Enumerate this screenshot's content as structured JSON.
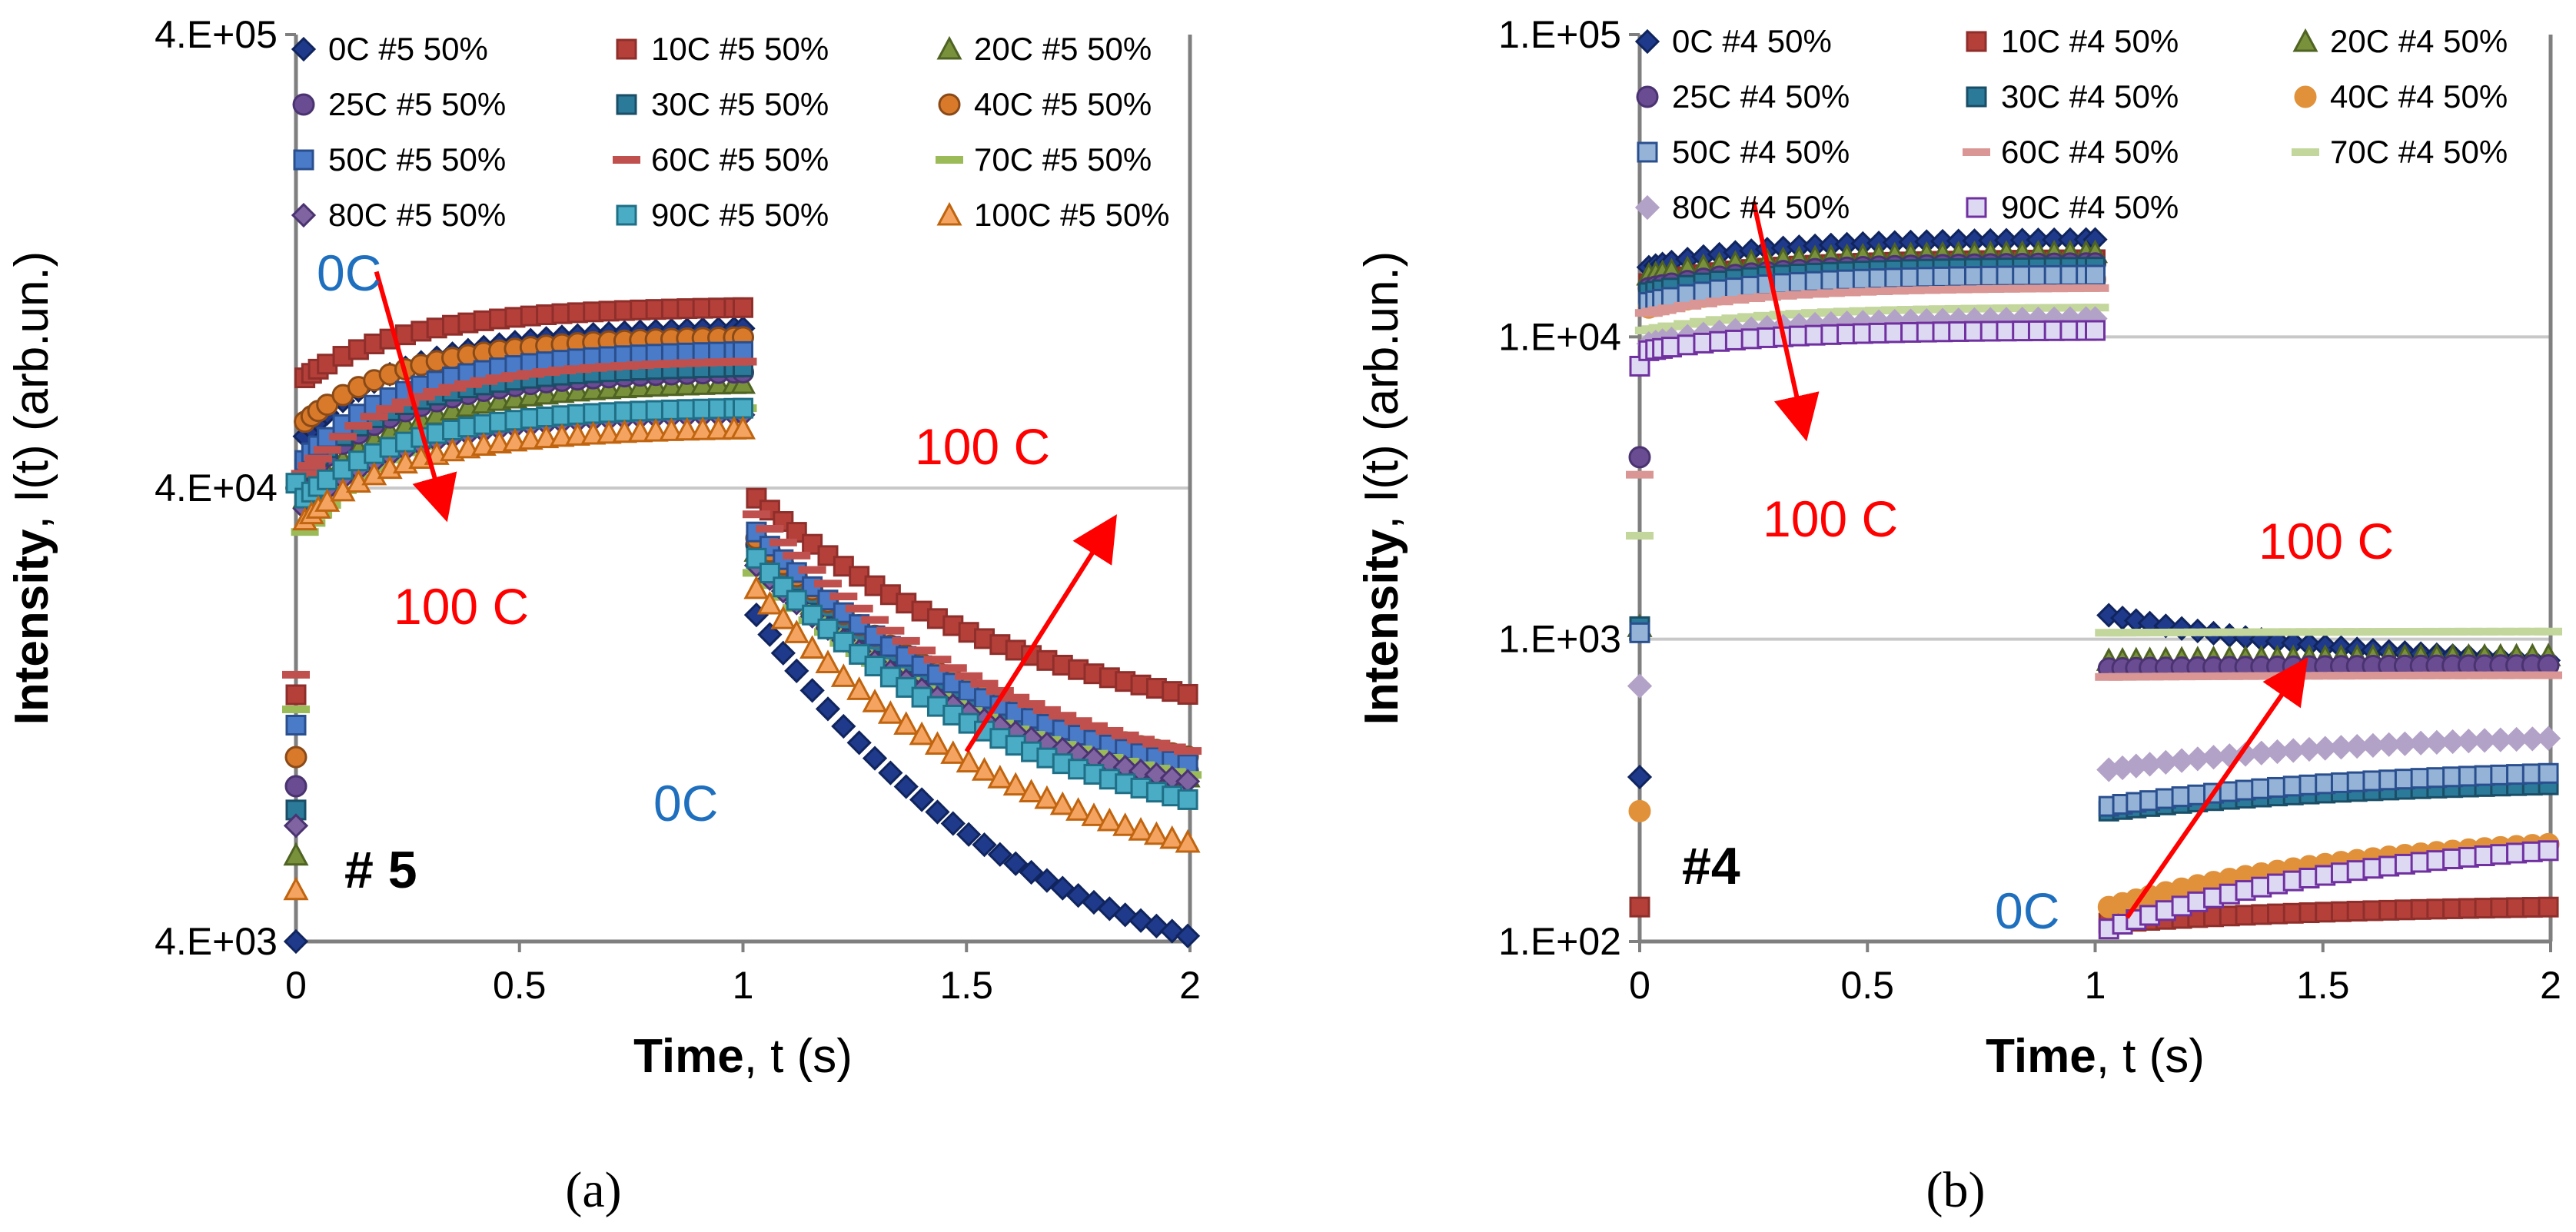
{
  "figure": {
    "captions": [
      "(a)",
      "(b)"
    ]
  },
  "chart_data": [
    {
      "id": "a",
      "type": "scatter",
      "panel_label": "# 5",
      "caption": "(a)",
      "xlabel_bold": "Time",
      "xlabel_rest": ", t (s)",
      "ylabel_bold": "Intensity",
      "ylabel_rest": ", I(t) (arb.un.)",
      "yscale": "log",
      "ylim": [
        4000,
        400000
      ],
      "yticks": [
        4000,
        40000,
        400000
      ],
      "ytick_labels": [
        "4.E+03",
        "4.E+04",
        "4.E+05"
      ],
      "xlim": [
        0,
        2
      ],
      "xticks": [
        0,
        0.5,
        1,
        1.5,
        2
      ],
      "xtick_labels": [
        "0",
        "0.5",
        "1",
        "1.5",
        "2"
      ],
      "gridlines_y": [
        40000
      ],
      "annotations": [
        {
          "text": "0C",
          "color": "#1f6fbf"
        },
        {
          "text": "100 C",
          "color": "#ff0000"
        },
        {
          "text": "100 C",
          "color": "#ff0000"
        },
        {
          "text": "0C",
          "color": "#1f6fbf"
        }
      ],
      "arrows": [
        {
          "from": [
            0.18,
            120000
          ],
          "to": [
            0.33,
            36000
          ],
          "color": "#ff0000"
        },
        {
          "from": [
            1.5,
            10500
          ],
          "to": [
            1.82,
            33000
          ],
          "color": "#ff0000"
        }
      ],
      "series": [
        {
          "name": "0C #5 50%",
          "marker": "diamond",
          "fill": "#1f3a8a",
          "stroke": "#10245e",
          "start": 4000,
          "on_init": 52000,
          "on_end": 90000,
          "off_init": 21000,
          "off_end": 4100
        },
        {
          "name": "10C #5 50%",
          "marker": "square",
          "fill": "#b5403a",
          "stroke": "#8f2e2a",
          "start": 14000,
          "on_init": 70000,
          "on_end": 100000,
          "off_init": 38000,
          "off_end": 14000
        },
        {
          "name": "20C #5 50%",
          "marker": "triangle",
          "fill": "#7a913c",
          "stroke": "#4f6322",
          "start": 6200,
          "on_init": 38000,
          "on_end": 68000,
          "off_init": 29000,
          "off_end": 9200
        },
        {
          "name": "25C #5 50%",
          "marker": "circle",
          "fill": "#6a4c93",
          "stroke": "#4a3370",
          "start": 8800,
          "on_init": 42000,
          "on_end": 72000,
          "off_init": 30000,
          "off_end": 9500
        },
        {
          "name": "30C #5 50%",
          "marker": "square",
          "fill": "#2b7a9a",
          "stroke": "#1a4d66",
          "start": 7800,
          "on_init": 44000,
          "on_end": 74000,
          "off_init": 30500,
          "off_end": 9600
        },
        {
          "name": "40C #5 50%",
          "marker": "circle",
          "fill": "#d87a2a",
          "stroke": "#8a4a18",
          "start": 10200,
          "on_init": 56000,
          "on_end": 86000,
          "off_init": 31000,
          "off_end": 10200
        },
        {
          "name": "50C #5 50%",
          "marker": "square",
          "fill": "#4a7bc8",
          "stroke": "#2a4f8f",
          "start": 12000,
          "on_init": 46000,
          "on_end": 80000,
          "off_init": 32000,
          "off_end": 9800
        },
        {
          "name": "60C #5 50%",
          "marker": "dash",
          "fill": "#c0504d",
          "stroke": "#c0504d",
          "start": 15500,
          "on_init": 43000,
          "on_end": 76000,
          "off_init": 35000,
          "off_end": 10500
        },
        {
          "name": "70C #5 50%",
          "marker": "dash",
          "fill": "#9bbb59",
          "stroke": "#9bbb59",
          "start": 13000,
          "on_init": 32000,
          "on_end": 60000,
          "off_init": 26000,
          "off_end": 9300
        },
        {
          "name": "80C #5 50%",
          "marker": "diamond",
          "fill": "#8064a2",
          "stroke": "#4a3370",
          "start": 7200,
          "on_init": 36000,
          "on_end": 58000,
          "off_init": 27000,
          "off_end": 9000
        },
        {
          "name": "90C #5 50%",
          "marker": "square",
          "fill": "#4bacc6",
          "stroke": "#1f6f86",
          "start": 41000,
          "on_init": 38000,
          "on_end": 60000,
          "off_init": 28000,
          "off_end": 8200
        },
        {
          "name": "100C #5 50%",
          "marker": "triangle",
          "fill": "#f4a460",
          "stroke": "#c0640f",
          "start": 5200,
          "on_init": 34000,
          "on_end": 54000,
          "off_init": 24000,
          "off_end": 6600
        }
      ]
    },
    {
      "id": "b",
      "type": "scatter",
      "panel_label": "#4",
      "caption": "(b)",
      "xlabel_bold": "Time",
      "xlabel_rest": ", t (s)",
      "ylabel_bold": "Intensity",
      "ylabel_rest": ", I(t) (arb.un.)",
      "yscale": "log",
      "ylim": [
        100,
        100000
      ],
      "yticks": [
        100,
        1000,
        10000,
        100000
      ],
      "ytick_labels": [
        "1.E+02",
        "1.E+03",
        "1.E+04",
        "1.E+05"
      ],
      "xlim": [
        0,
        2
      ],
      "xticks": [
        0,
        0.5,
        1,
        1.5,
        2
      ],
      "xtick_labels": [
        "0",
        "0.5",
        "1",
        "1.5",
        "2"
      ],
      "gridlines_y": [
        1000,
        10000
      ],
      "annotations": [
        {
          "text": "100 C",
          "color": "#ff0000"
        },
        {
          "text": "100 C",
          "color": "#ff0000"
        },
        {
          "text": "0C",
          "color": "#1f6fbf"
        }
      ],
      "arrows": [
        {
          "from": [
            0.25,
            28000
          ],
          "to": [
            0.36,
            5000
          ],
          "color": "#ff0000"
        },
        {
          "from": [
            1.07,
            120
          ],
          "to": [
            1.45,
            800
          ],
          "color": "#ff0000"
        }
      ],
      "series": [
        {
          "name": "0C #4 50%",
          "marker": "diamond",
          "fill": "#1f3a8a",
          "stroke": "#10245e",
          "start": 350,
          "on_init": 17000,
          "on_end": 21000,
          "off_init": 1200,
          "off_end": 850
        },
        {
          "name": "10C #4 50%",
          "marker": "square",
          "fill": "#b5403a",
          "stroke": "#8f2e2a",
          "start": 130,
          "on_init": 15000,
          "on_end": 18000,
          "off_init": 115,
          "off_end": 130
        },
        {
          "name": "20C #4 50%",
          "marker": "triangle",
          "fill": "#7a913c",
          "stroke": "#4f6322",
          "start": 1100,
          "on_init": 16000,
          "on_end": 19000,
          "off_init": 850,
          "off_end": 880
        },
        {
          "name": "25C #4 50%",
          "marker": "circle",
          "fill": "#6a4c93",
          "stroke": "#4a3370",
          "start": 4000,
          "on_init": 14500,
          "on_end": 17500,
          "off_init": 800,
          "off_end": 820
        },
        {
          "name": "30C #4 50%",
          "marker": "square",
          "fill": "#2b7a9a",
          "stroke": "#1a4d66",
          "start": 1100,
          "on_init": 14000,
          "on_end": 17000,
          "off_init": 270,
          "off_end": 330
        },
        {
          "name": "40C #4 50%",
          "marker": "circle",
          "fill": "#e0913a",
          "stroke": "#e0913a",
          "start": 270,
          "on_init": 12500,
          "on_end": 15500,
          "off_init": 130,
          "off_end": 210
        },
        {
          "name": "50C #4 50%",
          "marker": "square",
          "fill": "#95b3d7",
          "stroke": "#2a4f8f",
          "start": 1050,
          "on_init": 13000,
          "on_end": 16000,
          "off_init": 280,
          "off_end": 360
        },
        {
          "name": "60C #4 50%",
          "marker": "dash",
          "fill": "#d99694",
          "stroke": "#d99694",
          "start": 3500,
          "on_init": 12000,
          "on_end": 14500,
          "off_init": 750,
          "off_end": 760
        },
        {
          "name": "70C #4 50%",
          "marker": "dash",
          "fill": "#c3d69b",
          "stroke": "#c3d69b",
          "start": 2200,
          "on_init": 10500,
          "on_end": 12500,
          "off_init": 1050,
          "off_end": 1060
        },
        {
          "name": "80C #4 50%",
          "marker": "diamond",
          "fill": "#b3a2c7",
          "stroke": "#b3a2c7",
          "start": 700,
          "on_init": 9500,
          "on_end": 11500,
          "off_init": 370,
          "off_end": 470
        },
        {
          "name": "90C #4 50%",
          "marker": "square",
          "fill": "#ddd9f3",
          "stroke": "#7030a0",
          "start": 8000,
          "on_init": 9000,
          "on_end": 10500,
          "off_init": 110,
          "off_end": 200
        }
      ]
    }
  ]
}
